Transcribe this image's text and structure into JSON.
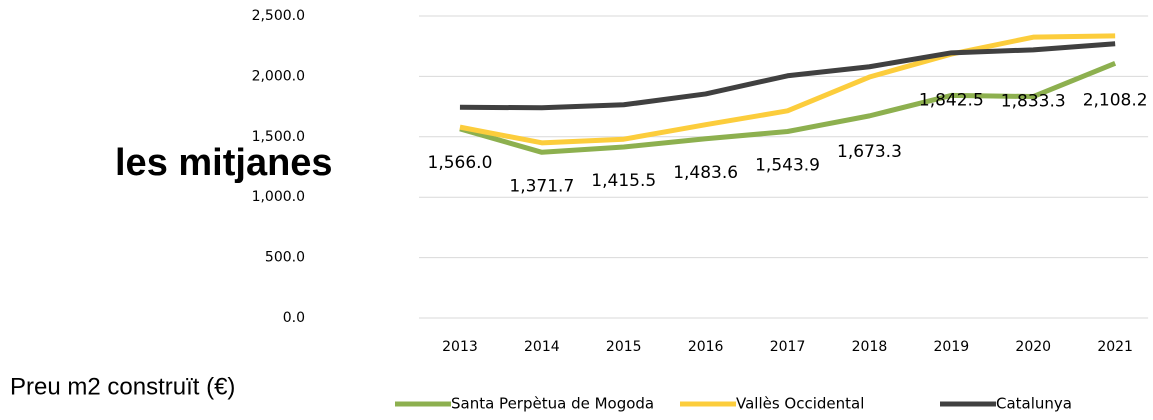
{
  "chart_data": {
    "type": "line",
    "side_title": "les mitjanes",
    "caption": "Preu m2 construït (€)",
    "categories": [
      "2013",
      "2014",
      "2015",
      "2016",
      "2017",
      "2018",
      "2019",
      "2020",
      "2021"
    ],
    "series": [
      {
        "name": "Santa Perpètua de Mogoda",
        "color": "#8db04f",
        "values": [
          1566.0,
          1371.7,
          1415.5,
          1483.6,
          1543.9,
          1673.3,
          1842.5,
          1833.3,
          2108.2
        ],
        "value_labels": [
          "1,566.0",
          "1,371.7",
          "1,415.5",
          "1,483.6",
          "1,543.9",
          "1,673.3",
          "1,842.5",
          "1,833.3",
          "2,108.2"
        ]
      },
      {
        "name": "Vallès Occidental",
        "color": "#fccd3c",
        "values": [
          1580,
          1450,
          1480,
          1600,
          1715,
          1995,
          2185,
          2325,
          2335
        ]
      },
      {
        "name": "Catalunya",
        "color": "#404040",
        "values": [
          1745,
          1740,
          1765,
          1855,
          2005,
          2080,
          2195,
          2220,
          2270
        ]
      }
    ],
    "ylim": [
      0,
      2500
    ],
    "yticks": [
      {
        "value": 0,
        "label": "0.0"
      },
      {
        "value": 500,
        "label": "500.0"
      },
      {
        "value": 1000,
        "label": "1,000.0"
      },
      {
        "value": 1500,
        "label": "1,500.0"
      },
      {
        "value": 2000,
        "label": "2,000.0"
      },
      {
        "value": 2500,
        "label": "2,500.0"
      }
    ],
    "grid": true,
    "legend": "bottom"
  }
}
